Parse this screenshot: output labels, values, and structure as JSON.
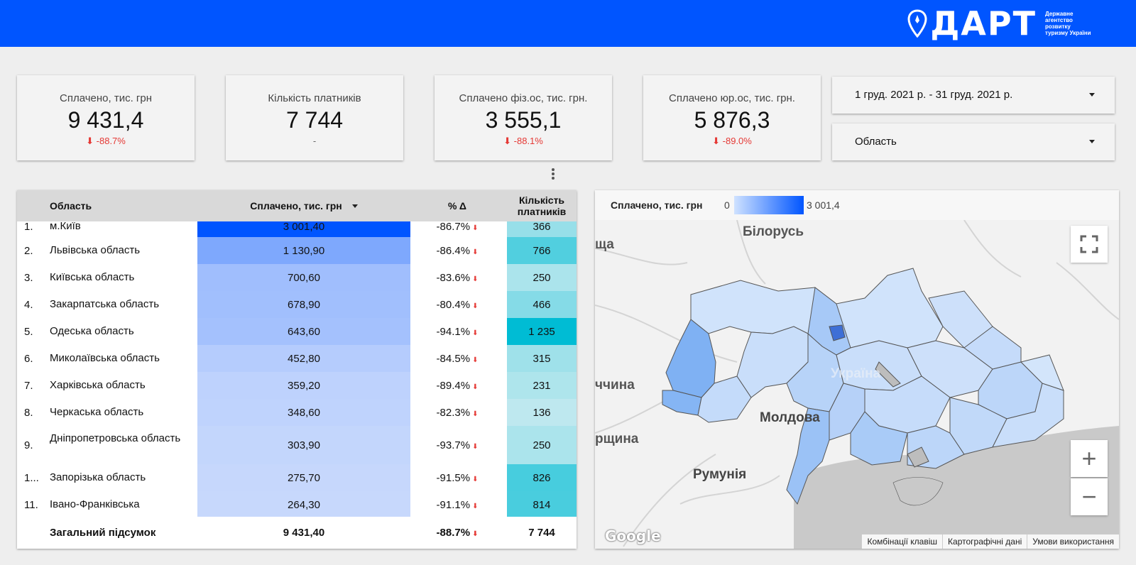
{
  "header": {
    "logo_text": "ДАРТ",
    "logo_subtitle": "Державне агентство розвитку туризму України",
    "bg_color": "#0055ff"
  },
  "kpis": [
    {
      "label": "Сплачено, тис. грн",
      "value": "9 431,4",
      "delta": "-88.7%"
    },
    {
      "label": "Кількість платників",
      "value": "7 744",
      "delta": "-"
    },
    {
      "label": "Сплачено фіз.ос, тис. грн.",
      "value": "3 555,1",
      "delta": "-88.1%"
    },
    {
      "label": "Сплачено юр.ос, тис. грн.",
      "value": "5 876,3",
      "delta": "-89.0%"
    }
  ],
  "filters": {
    "date_range": "1 груд. 2021 р. - 31 груд. 2021 р.",
    "region": "Область"
  },
  "table": {
    "columns": {
      "region": "Область",
      "paid": "Сплачено, тис. грн",
      "delta": "% Δ",
      "count_line1": "Кількість",
      "count_line2": "платників"
    },
    "rows": [
      {
        "num": "1.",
        "region": "м.Київ",
        "paid": "3 001,40",
        "paid_value": 3001.4,
        "delta": "-86.7%",
        "count": "366",
        "count_value": 366
      },
      {
        "num": "2.",
        "region": "Львівська область",
        "paid": "1 130,90",
        "paid_value": 1130.9,
        "delta": "-86.4%",
        "count": "766",
        "count_value": 766
      },
      {
        "num": "3.",
        "region": "Київська область",
        "paid": "700,60",
        "paid_value": 700.6,
        "delta": "-83.6%",
        "count": "250",
        "count_value": 250
      },
      {
        "num": "4.",
        "region": "Закарпатська область",
        "paid": "678,90",
        "paid_value": 678.9,
        "delta": "-80.4%",
        "count": "466",
        "count_value": 466
      },
      {
        "num": "5.",
        "region": "Одеська область",
        "paid": "643,60",
        "paid_value": 643.6,
        "delta": "-94.1%",
        "count": "1 235",
        "count_value": 1235
      },
      {
        "num": "6.",
        "region": "Миколаївська область",
        "paid": "452,80",
        "paid_value": 452.8,
        "delta": "-84.5%",
        "count": "315",
        "count_value": 315
      },
      {
        "num": "7.",
        "region": "Харківська область",
        "paid": "359,20",
        "paid_value": 359.2,
        "delta": "-89.4%",
        "count": "231",
        "count_value": 231
      },
      {
        "num": "8.",
        "region": "Черкаська область",
        "paid": "348,60",
        "paid_value": 348.6,
        "delta": "-82.3%",
        "count": "136",
        "count_value": 136
      },
      {
        "num": "9.",
        "region": "Дніпропетровська область",
        "paid": "303,90",
        "paid_value": 303.9,
        "delta": "-93.7%",
        "count": "250",
        "count_value": 250
      },
      {
        "num": "1...",
        "region": "Запорізька область",
        "paid": "275,70",
        "paid_value": 275.7,
        "delta": "-91.5%",
        "count": "826",
        "count_value": 826
      },
      {
        "num": "11.",
        "region": "Івано-Франківська",
        "paid": "264,30",
        "paid_value": 264.3,
        "delta": "-91.1%",
        "count": "814",
        "count_value": 814
      }
    ],
    "total": {
      "label": "Загальний підсумок",
      "paid": "9 431,40",
      "delta": "-88.7%",
      "count": "7 744"
    }
  },
  "map": {
    "legend_title": "Сплачено, тис. грн",
    "legend_min": "0",
    "legend_max": "3 001,4",
    "labels": {
      "belarus": "Білорусь",
      "moldova": "Молдова",
      "romania": "Румунія",
      "ukraine": "Україна",
      "edge1": "ща",
      "edge2": "ччина",
      "edge3": "рщина"
    },
    "footer": [
      "Комбінації клавіш",
      "Картографічні дані",
      "Умови використання"
    ],
    "google": "Google",
    "zoom_in": "+",
    "zoom_out": "−"
  },
  "colors": {
    "accent": "#0055ff",
    "negative": "#e53935",
    "count_max": "#00bcd4"
  }
}
